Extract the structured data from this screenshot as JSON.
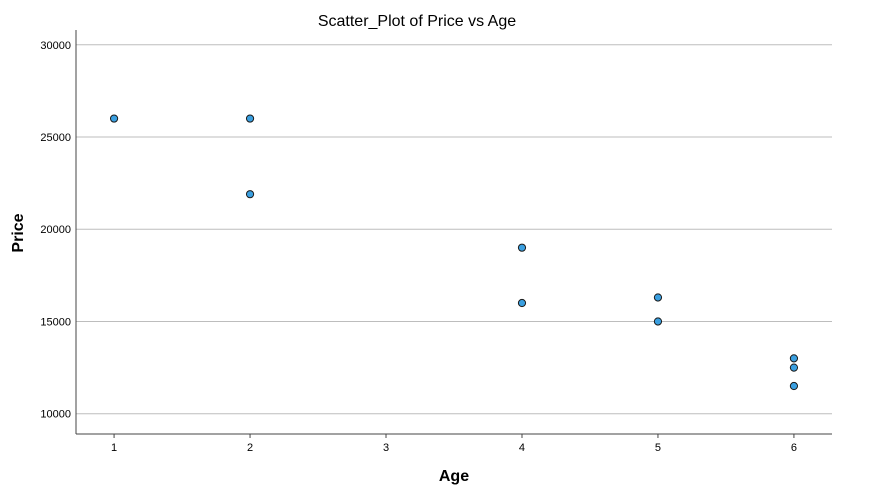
{
  "chart_data": {
    "type": "scatter",
    "title": "Scatter_Plot of Price vs Age",
    "xlabel": "Age",
    "ylabel": "Price",
    "xlim": [
      0.72,
      6.28
    ],
    "ylim": [
      8900,
      30800
    ],
    "x_ticks": [
      1,
      2,
      3,
      4,
      5,
      6
    ],
    "y_ticks": [
      10000,
      15000,
      20000,
      25000,
      30000
    ],
    "grid": "horizontal",
    "marker_color": "#3a9fe0",
    "marker_edge_color": "#1a1a1a",
    "points": [
      {
        "x": 1,
        "y": 26000
      },
      {
        "x": 2,
        "y": 26000
      },
      {
        "x": 2,
        "y": 21900
      },
      {
        "x": 4,
        "y": 19000
      },
      {
        "x": 4,
        "y": 16000
      },
      {
        "x": 5,
        "y": 16300
      },
      {
        "x": 5,
        "y": 15000
      },
      {
        "x": 6,
        "y": 13000
      },
      {
        "x": 6,
        "y": 12500
      },
      {
        "x": 6,
        "y": 11500
      }
    ]
  }
}
